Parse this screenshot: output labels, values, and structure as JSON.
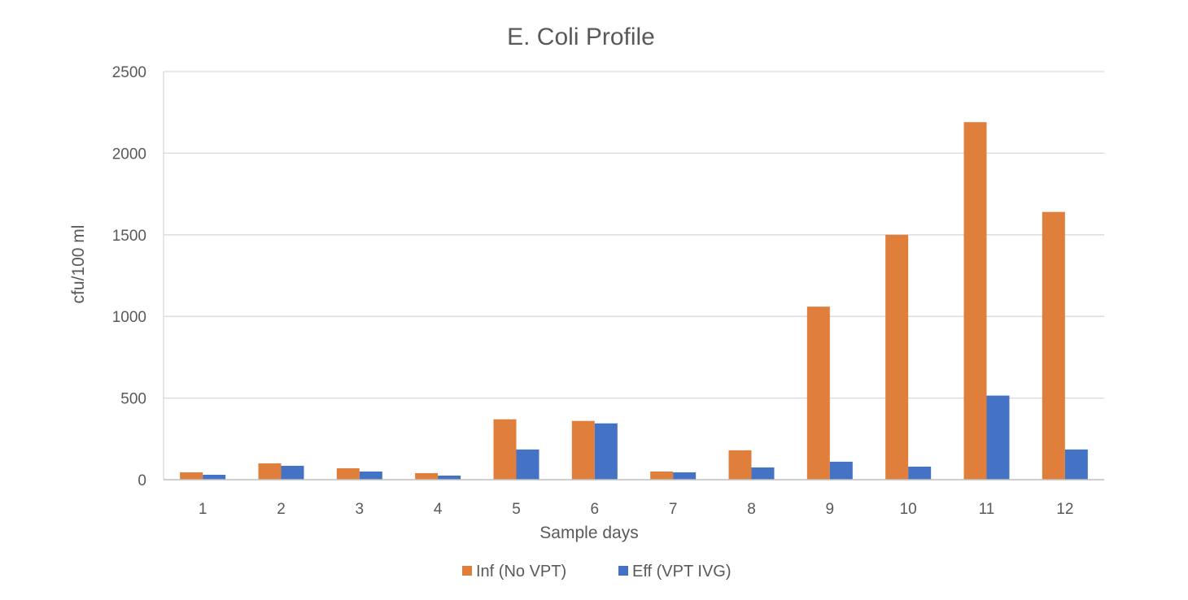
{
  "chart_data": {
    "type": "bar",
    "title": "E. Coli Profile",
    "xlabel": "Sample days",
    "ylabel": "cfu/100 ml",
    "categories": [
      "1",
      "2",
      "3",
      "4",
      "5",
      "6",
      "7",
      "8",
      "9",
      "10",
      "11",
      "12"
    ],
    "series": [
      {
        "name": "Inf (No VPT)",
        "color": "#E07F3C",
        "values": [
          45,
          100,
          70,
          40,
          370,
          360,
          50,
          180,
          1060,
          1500,
          2190,
          1640
        ]
      },
      {
        "name": "Eff (VPT IVG)",
        "color": "#4472C4",
        "values": [
          30,
          85,
          50,
          25,
          185,
          345,
          45,
          75,
          110,
          80,
          515,
          185
        ]
      }
    ],
    "ylim": [
      0,
      2500
    ],
    "yticks": [
      0,
      500,
      1000,
      1500,
      2000,
      2500
    ],
    "grid": true,
    "legend": "bottom-center"
  }
}
